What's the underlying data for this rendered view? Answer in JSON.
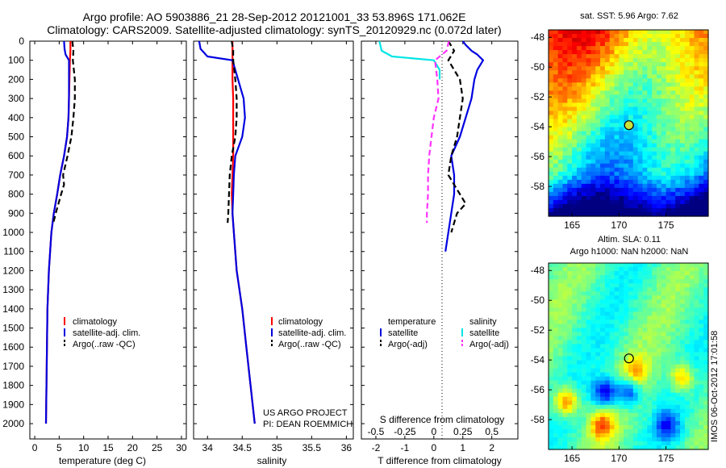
{
  "header": {
    "line1": "Argo profile: AO 5903886_21 28-Sep-2012 20121001_33 53.896S 171.062E",
    "line2": "Climatology: CARS2009. Satellite-adjusted climatology: synTS_20120929.nc (0.072d later)"
  },
  "depth_ticks": [
    "0",
    "100",
    "200",
    "300",
    "400",
    "500",
    "600",
    "700",
    "800",
    "900",
    "1000",
    "1100",
    "1200",
    "1300",
    "1400",
    "1500",
    "1600",
    "1700",
    "1800",
    "1900",
    "2000"
  ],
  "colors": {
    "climatology": "#ff0000",
    "satellite": "#0000e0",
    "argo": "#000000",
    "cyan": "#00e5e5",
    "magenta": "#ff33ff"
  },
  "panels": {
    "temperature": {
      "xlabel": "temperature (deg C)",
      "xticks": [
        "0",
        "5",
        "10",
        "15",
        "20",
        "25",
        "30"
      ],
      "legend": [
        "climatology",
        "satellite-adj. clim.",
        "Argo(..raw -QC)"
      ]
    },
    "salinity": {
      "xlabel": "salinity",
      "xticks": [
        "34",
        "34.5",
        "35",
        "35.5",
        "36"
      ],
      "legend": [
        "climatology",
        "satellite-adj. clim.",
        "Argo(..raw -QC)"
      ],
      "note1": "US ARGO PROJECT",
      "note2": "PI: DEAN ROEMMICH"
    },
    "difference": {
      "xlabel": "T difference from climatology",
      "xticks": [
        "-2",
        "-1",
        "0",
        "1",
        "2"
      ],
      "top_label": "S difference from climatology",
      "top_ticks": [
        "-0.5",
        "-0.25",
        "0",
        "0.25",
        "0.5"
      ],
      "legend_t_title": "temperature",
      "legend_s_title": "salinity",
      "legend_t": [
        "satellite",
        "Argo(-adj)"
      ],
      "legend_s": [
        "satellite",
        "Argo(-adj)"
      ]
    }
  },
  "maps": {
    "sst_title": "sat. SST: 5.96 Argo: 7.62",
    "sla_title1": "Altim. SLA: 0.11",
    "sla_title2": "Argo h1000: NaN h2000: NaN",
    "yticks": [
      "-48",
      "-50",
      "-52",
      "-54",
      "-56",
      "-58"
    ],
    "xticks": [
      "165",
      "170",
      "175"
    ],
    "float_position": {
      "lon": 171.062,
      "lat": -53.896
    }
  },
  "watermark": "IMOS 06-Oct-2012 17:01:58",
  "chart_data": [
    {
      "type": "line",
      "title": "",
      "xlabel": "temperature (deg C)",
      "ylabel": "",
      "xlim": [
        -1,
        31
      ],
      "ylim": [
        2080,
        0
      ],
      "series": [
        {
          "name": "climatology",
          "depth": [
            0,
            50,
            100,
            200,
            300,
            400,
            500,
            600,
            700,
            800,
            900,
            1000,
            1200,
            1400,
            1600,
            1800,
            2000
          ],
          "values": [
            7.3,
            7.3,
            7.2,
            7.1,
            7.0,
            6.9,
            6.6,
            6.0,
            5.2,
            4.6,
            3.9,
            3.4,
            2.9,
            2.6,
            2.5,
            2.4,
            2.3
          ]
        },
        {
          "name": "satellite-adj. clim.",
          "depth": [
            0,
            40,
            70,
            100,
            200,
            300,
            400,
            500,
            600,
            700,
            800,
            900,
            1000,
            1200,
            1400,
            1600,
            1800,
            2000
          ],
          "values": [
            6.0,
            6.1,
            6.3,
            7.0,
            7.0,
            7.0,
            6.9,
            6.6,
            6.0,
            5.2,
            4.6,
            3.9,
            3.4,
            2.9,
            2.6,
            2.5,
            2.4,
            2.3
          ]
        },
        {
          "name": "Argo(..raw -QC)",
          "depth": [
            0,
            50,
            100,
            200,
            300,
            400,
            500,
            600,
            700,
            750,
            800,
            900,
            950
          ],
          "values": [
            7.7,
            7.9,
            7.8,
            8.2,
            8.2,
            7.9,
            7.5,
            6.7,
            5.8,
            6.0,
            5.4,
            4.3,
            3.8
          ]
        }
      ]
    },
    {
      "type": "line",
      "title": "",
      "xlabel": "salinity",
      "ylabel": "",
      "xlim": [
        33.8,
        36.1
      ],
      "ylim": [
        2080,
        0
      ],
      "series": [
        {
          "name": "climatology",
          "depth": [
            0,
            50,
            100,
            200,
            300,
            400,
            500,
            600,
            700,
            800,
            900,
            1000,
            1200,
            1400,
            1600,
            1800,
            2000
          ],
          "values": [
            34.36,
            34.36,
            34.36,
            34.36,
            34.37,
            34.37,
            34.37,
            34.37,
            34.36,
            34.35,
            34.36,
            34.38,
            34.42,
            34.5,
            34.56,
            34.62,
            34.68
          ]
        },
        {
          "name": "satellite-adj. clim.",
          "depth": [
            0,
            40,
            80,
            100,
            200,
            300,
            400,
            500,
            600,
            700,
            800,
            900,
            1000,
            1200,
            1400,
            1600,
            1800,
            2000
          ],
          "values": [
            33.88,
            33.9,
            34.0,
            34.36,
            34.44,
            34.52,
            34.54,
            34.5,
            34.4,
            34.38,
            34.37,
            34.36,
            34.38,
            34.42,
            34.5,
            34.56,
            34.62,
            34.68
          ]
        },
        {
          "name": "Argo(..raw -QC)",
          "depth": [
            0,
            50,
            100,
            200,
            300,
            400,
            500,
            600,
            700,
            800,
            900,
            950
          ],
          "values": [
            34.35,
            34.37,
            34.37,
            34.4,
            34.42,
            34.42,
            34.4,
            34.35,
            34.32,
            34.31,
            34.3,
            34.29
          ]
        }
      ]
    },
    {
      "type": "line",
      "title": "",
      "xlabel": "T difference from climatology",
      "ylabel": "",
      "xlim": [
        -2.5,
        2.9
      ],
      "ylim": [
        2080,
        0
      ],
      "series": [
        {
          "name": "satellite",
          "depth": [
            0,
            20,
            50,
            70,
            100,
            150,
            200,
            300,
            400,
            500,
            600,
            700,
            800,
            900,
            1000,
            1100
          ],
          "values": [
            1.0,
            1.1,
            1.3,
            1.5,
            1.7,
            1.5,
            1.4,
            1.3,
            1.1,
            0.9,
            0.6,
            0.7,
            0.7,
            0.6,
            0.5,
            0.4
          ]
        },
        {
          "name": "Argo(-adj)",
          "depth": [
            0,
            50,
            100,
            200,
            300,
            400,
            500,
            600,
            700,
            800,
            850,
            900,
            1000
          ],
          "values": [
            0.5,
            0.7,
            0.5,
            0.9,
            1.0,
            0.9,
            0.8,
            0.6,
            0.5,
            0.9,
            1.1,
            0.8,
            0.6
          ]
        }
      ]
    },
    {
      "type": "line",
      "title": "",
      "xlabel": "S difference from climatology",
      "ylabel": "",
      "xlim": [
        -0.625,
        0.725
      ],
      "ylim": [
        2080,
        0
      ],
      "series": [
        {
          "name": "satellite",
          "depth": [
            0,
            50,
            80,
            100,
            150,
            200
          ],
          "values": [
            -0.47,
            -0.45,
            -0.36,
            0.0,
            0.05,
            0.05
          ]
        },
        {
          "name": "Argo(-adj)",
          "depth": [
            0,
            50,
            100,
            200,
            300,
            400,
            500,
            600,
            700,
            800,
            900,
            950
          ],
          "values": [
            0.13,
            0.11,
            0.01,
            0.03,
            0.04,
            0.0,
            -0.02,
            -0.04,
            -0.05,
            -0.05,
            -0.06,
            -0.06
          ]
        }
      ]
    }
  ]
}
